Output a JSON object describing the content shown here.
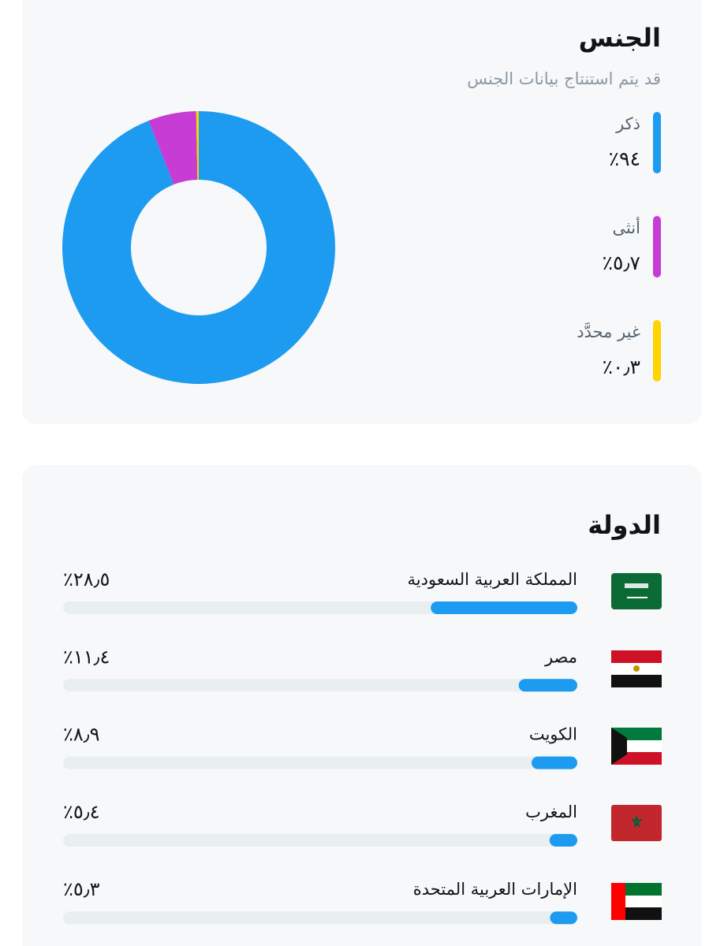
{
  "gender": {
    "title": "الجنس",
    "subtitle": "قد يتم استنتاج بيانات الجنس",
    "type": "donut",
    "items": [
      {
        "name": "ذكر",
        "value": 94,
        "value_label": "٪٩٤",
        "color": "#1d9bf0"
      },
      {
        "name": "أنثى",
        "value": 5.7,
        "value_label": "٪٥٫٧",
        "color": "#c73cd4"
      },
      {
        "name": "غير محدَّد",
        "value": 0.3,
        "value_label": "٪٠٫٣",
        "color": "#ffd400"
      }
    ]
  },
  "country": {
    "title": "الدولة",
    "type": "bar",
    "xlim": [
      0,
      100
    ],
    "color": "#1d9bf0",
    "items": [
      {
        "name": "المملكة العربية السعودية",
        "value": 28.5,
        "value_label": "٪٢٨٫٥"
      },
      {
        "name": "مصر",
        "value": 11.4,
        "value_label": "٪١١٫٤"
      },
      {
        "name": "الكويت",
        "value": 8.9,
        "value_label": "٪٨٫٩"
      },
      {
        "name": "المغرب",
        "value": 5.4,
        "value_label": "٪٥٫٤"
      },
      {
        "name": "الإمارات العربية المتحدة",
        "value": 5.3,
        "value_label": "٪٥٫٣"
      }
    ]
  }
}
